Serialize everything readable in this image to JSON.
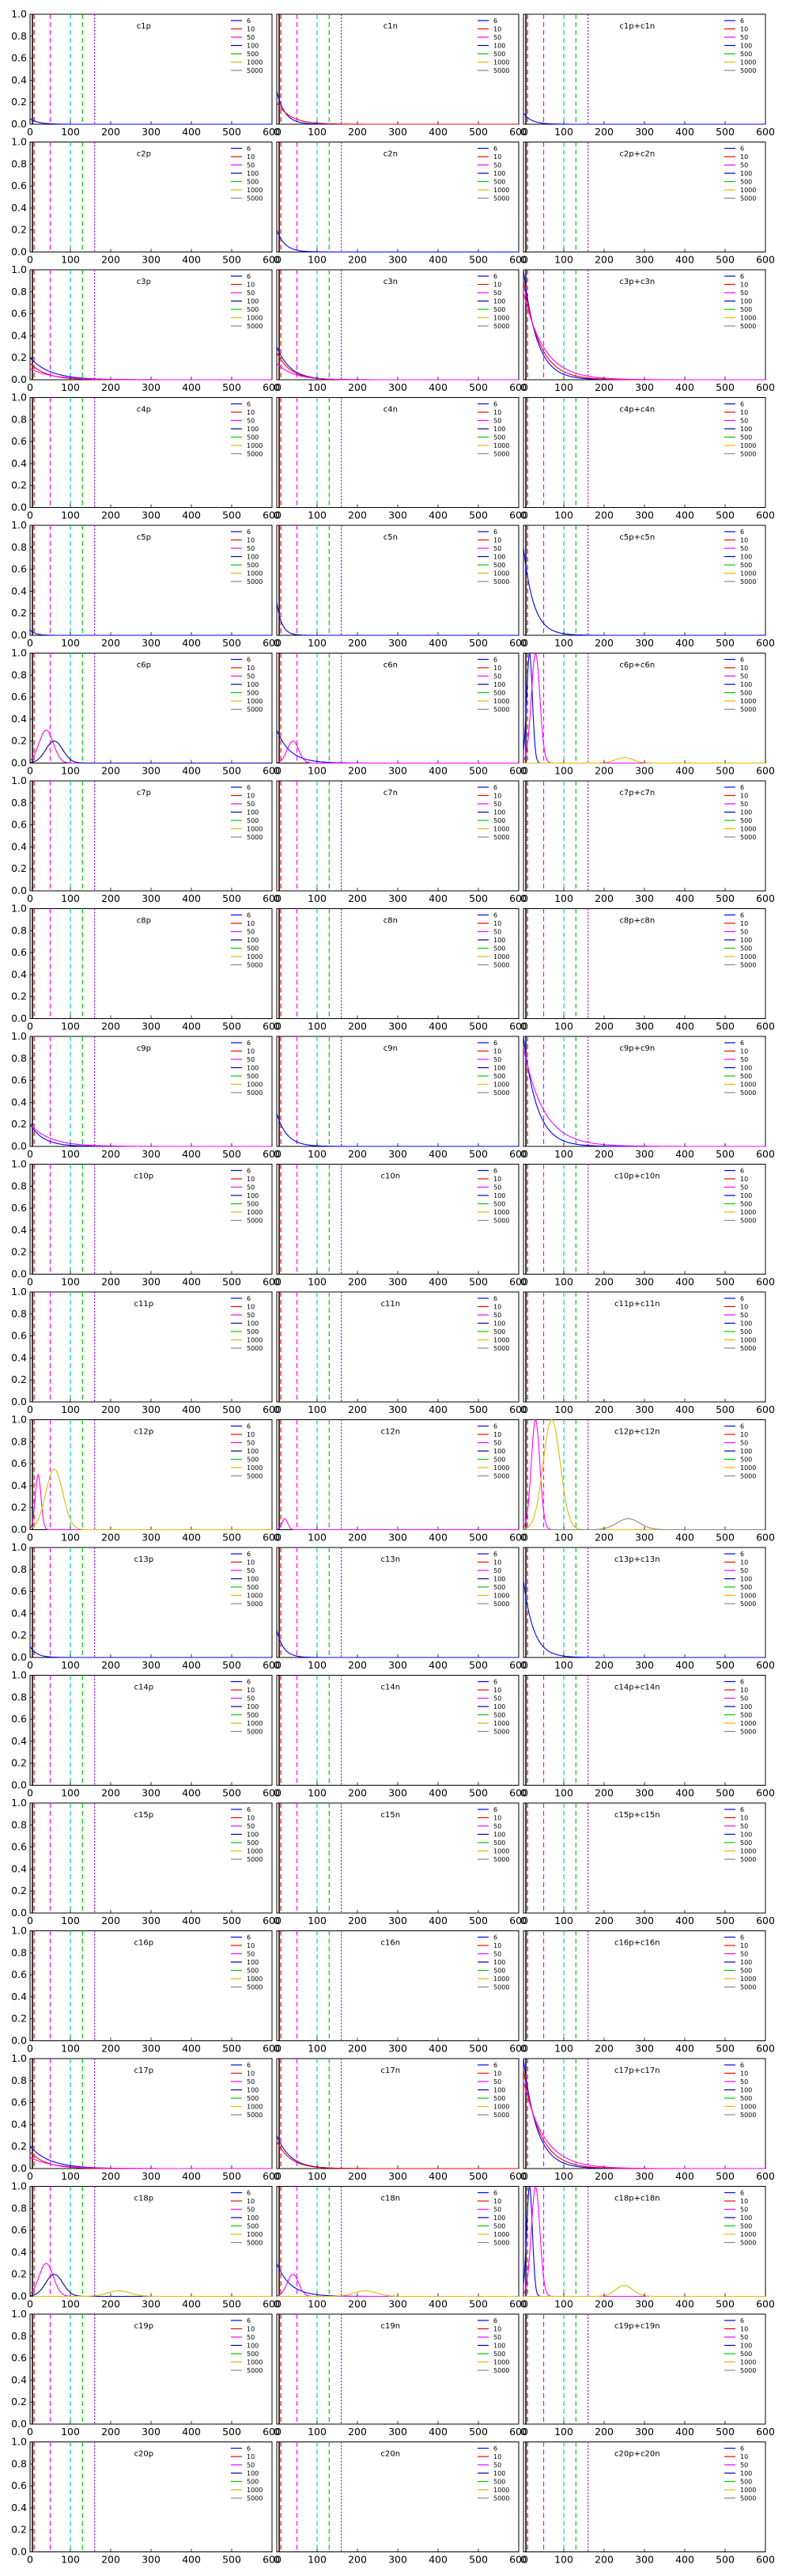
{
  "chart_data": {
    "type": "line",
    "layout": "20 rows x 3 columns of small-multiple line plots",
    "xlim": [
      0,
      600
    ],
    "ylim": [
      0,
      1.0
    ],
    "x_ticks": [
      0,
      100,
      200,
      300,
      400,
      500,
      600
    ],
    "y_ticks": [
      0.0,
      0.2,
      0.4,
      0.6,
      0.8,
      1.0
    ],
    "x_ticklabels": [
      "0",
      "100",
      "200",
      "300",
      "400",
      "500",
      "600"
    ],
    "y_ticklabels": [
      "0.0",
      "0.2",
      "0.4",
      "0.6",
      "0.8",
      "1.0"
    ],
    "grid": false,
    "legend_position": "top-right",
    "series_legend": [
      {
        "name": "6",
        "color": "#0000ff"
      },
      {
        "name": "10",
        "color": "#ff0000"
      },
      {
        "name": "50",
        "color": "#ff00ff"
      },
      {
        "name": "100",
        "color": "#0000aa"
      },
      {
        "name": "500",
        "color": "#00cc00"
      },
      {
        "name": "1000",
        "color": "#ddbb00"
      },
      {
        "name": "5000",
        "color": "#888888"
      }
    ],
    "reference_lines": [
      {
        "x": 6,
        "color": "#000000",
        "dash": "solid"
      },
      {
        "x": 10,
        "color": "#ff0000",
        "dash": "dashed"
      },
      {
        "x": 50,
        "color": "#ff00ff",
        "dash": "dashed"
      },
      {
        "x": 100,
        "color": "#00cccc",
        "dash": "dashed"
      },
      {
        "x": 130,
        "color": "#00cc00",
        "dash": "dashed"
      },
      {
        "x": 160,
        "color": "#9900ff",
        "dash": "dotted"
      }
    ],
    "panels": [
      {
        "title": "c1p",
        "col": 0,
        "row": 0,
        "series": [
          {
            "name": "6",
            "decay": 0.05,
            "amp": 0.05
          }
        ]
      },
      {
        "title": "c1n",
        "col": 1,
        "row": 0,
        "series": [
          {
            "name": "6",
            "decay": 0.05,
            "amp": 0.3
          },
          {
            "name": "10",
            "decay": 0.03,
            "amp": 0.2
          }
        ]
      },
      {
        "title": "c1p+c1n",
        "col": 2,
        "row": 0,
        "series": [
          {
            "name": "6",
            "decay": 0.05,
            "amp": 0.1
          }
        ]
      },
      {
        "title": "c2p",
        "col": 0,
        "row": 1,
        "series": []
      },
      {
        "title": "c2n",
        "col": 1,
        "row": 1,
        "series": [
          {
            "name": "6",
            "decay": 0.05,
            "amp": 0.2
          }
        ]
      },
      {
        "title": "c2p+c2n",
        "col": 2,
        "row": 1,
        "series": []
      },
      {
        "title": "c3p",
        "col": 0,
        "row": 2,
        "series": [
          {
            "name": "6",
            "decay": 0.02,
            "amp": 0.2
          },
          {
            "name": "10",
            "decay": 0.025,
            "amp": 0.15
          },
          {
            "name": "50",
            "decay": 0.018,
            "amp": 0.1
          }
        ]
      },
      {
        "title": "c3n",
        "col": 1,
        "row": 2,
        "series": [
          {
            "name": "6",
            "decay": 0.03,
            "amp": 0.3
          },
          {
            "name": "10",
            "decay": 0.03,
            "amp": 0.25
          },
          {
            "name": "50",
            "decay": 0.025,
            "amp": 0.15
          }
        ]
      },
      {
        "title": "c3p+c3n",
        "col": 2,
        "row": 2,
        "series": [
          {
            "name": "6",
            "decay": 0.03,
            "amp": 1.0
          },
          {
            "name": "10",
            "decay": 0.025,
            "amp": 0.9
          },
          {
            "name": "50",
            "decay": 0.02,
            "amp": 0.8
          }
        ]
      },
      {
        "title": "c4p",
        "col": 0,
        "row": 3,
        "series": []
      },
      {
        "title": "c4n",
        "col": 1,
        "row": 3,
        "series": []
      },
      {
        "title": "c4p+c4n",
        "col": 2,
        "row": 3,
        "series": []
      },
      {
        "title": "c5p",
        "col": 0,
        "row": 4,
        "series": [
          {
            "name": "6",
            "decay": 0.08,
            "amp": 0.05
          }
        ]
      },
      {
        "title": "c5n",
        "col": 1,
        "row": 4,
        "series": [
          {
            "name": "6",
            "decay": 0.08,
            "amp": 0.3
          }
        ]
      },
      {
        "title": "c5p+c5n",
        "col": 2,
        "row": 4,
        "series": [
          {
            "name": "6",
            "decay": 0.04,
            "amp": 0.8
          }
        ]
      },
      {
        "title": "c6p",
        "col": 0,
        "row": 5,
        "series": [
          {
            "name": "50",
            "peak": 40,
            "width": 25,
            "amp": 0.3
          },
          {
            "name": "100",
            "peak": 60,
            "width": 30,
            "amp": 0.2
          }
        ]
      },
      {
        "title": "c6n",
        "col": 1,
        "row": 5,
        "series": [
          {
            "name": "6",
            "decay": 0.03,
            "amp": 0.3
          },
          {
            "name": "50",
            "peak": 40,
            "width": 20,
            "amp": 0.2
          }
        ]
      },
      {
        "title": "c6p+c6n",
        "col": 2,
        "row": 5,
        "series": [
          {
            "name": "6",
            "peak": 15,
            "width": 10,
            "amp": 1.0
          },
          {
            "name": "50",
            "peak": 30,
            "width": 15,
            "amp": 1.0
          },
          {
            "name": "1000",
            "peak": 250,
            "width": 30,
            "amp": 0.05
          }
        ]
      },
      {
        "title": "c7p",
        "col": 0,
        "row": 6,
        "series": []
      },
      {
        "title": "c7n",
        "col": 1,
        "row": 6,
        "series": []
      },
      {
        "title": "c7p+c7n",
        "col": 2,
        "row": 6,
        "series": []
      },
      {
        "title": "c8p",
        "col": 0,
        "row": 7,
        "series": []
      },
      {
        "title": "c8n",
        "col": 1,
        "row": 7,
        "series": []
      },
      {
        "title": "c8p+c8n",
        "col": 2,
        "row": 7,
        "series": []
      },
      {
        "title": "c9p",
        "col": 0,
        "row": 8,
        "series": [
          {
            "name": "6",
            "decay": 0.03,
            "amp": 0.2
          },
          {
            "name": "50",
            "decay": 0.02,
            "amp": 0.2
          }
        ]
      },
      {
        "title": "c9n",
        "col": 1,
        "row": 8,
        "series": [
          {
            "name": "6",
            "decay": 0.04,
            "amp": 0.3
          }
        ]
      },
      {
        "title": "c9p+c9n",
        "col": 2,
        "row": 8,
        "series": [
          {
            "name": "6",
            "decay": 0.03,
            "amp": 1.0
          },
          {
            "name": "50",
            "decay": 0.02,
            "amp": 0.9
          }
        ]
      },
      {
        "title": "c10p",
        "col": 0,
        "row": 9,
        "series": []
      },
      {
        "title": "c10n",
        "col": 1,
        "row": 9,
        "series": []
      },
      {
        "title": "c10p+c10n",
        "col": 2,
        "row": 9,
        "series": []
      },
      {
        "title": "c11p",
        "col": 0,
        "row": 10,
        "series": []
      },
      {
        "title": "c11n",
        "col": 1,
        "row": 10,
        "series": []
      },
      {
        "title": "c11p+c11n",
        "col": 2,
        "row": 10,
        "series": []
      },
      {
        "title": "c12p",
        "col": 0,
        "row": 11,
        "series": [
          {
            "name": "50",
            "peak": 20,
            "width": 10,
            "amp": 0.5
          },
          {
            "name": "1000",
            "peak": 60,
            "width": 30,
            "amp": 0.55
          }
        ]
      },
      {
        "title": "c12n",
        "col": 1,
        "row": 11,
        "series": [
          {
            "name": "50",
            "peak": 20,
            "width": 10,
            "amp": 0.1
          }
        ]
      },
      {
        "title": "c12p+c12n",
        "col": 2,
        "row": 11,
        "series": [
          {
            "name": "50",
            "peak": 30,
            "width": 15,
            "amp": 1.0
          },
          {
            "name": "1000",
            "peak": 70,
            "width": 30,
            "amp": 1.0
          },
          {
            "name": "5000",
            "peak": 260,
            "width": 40,
            "amp": 0.1
          }
        ]
      },
      {
        "title": "c13p",
        "col": 0,
        "row": 12,
        "series": [
          {
            "name": "6",
            "decay": 0.06,
            "amp": 0.1
          }
        ]
      },
      {
        "title": "c13n",
        "col": 1,
        "row": 12,
        "series": [
          {
            "name": "6",
            "decay": 0.06,
            "amp": 0.25
          }
        ]
      },
      {
        "title": "c13p+c13n",
        "col": 2,
        "row": 12,
        "series": [
          {
            "name": "6",
            "decay": 0.04,
            "amp": 0.7
          }
        ]
      },
      {
        "title": "c14p",
        "col": 0,
        "row": 13,
        "series": []
      },
      {
        "title": "c14n",
        "col": 1,
        "row": 13,
        "series": []
      },
      {
        "title": "c14p+c14n",
        "col": 2,
        "row": 13,
        "series": []
      },
      {
        "title": "c15p",
        "col": 0,
        "row": 14,
        "series": []
      },
      {
        "title": "c15n",
        "col": 1,
        "row": 14,
        "series": []
      },
      {
        "title": "c15p+c15n",
        "col": 2,
        "row": 14,
        "series": []
      },
      {
        "title": "c16p",
        "col": 0,
        "row": 15,
        "series": []
      },
      {
        "title": "c16n",
        "col": 1,
        "row": 15,
        "series": []
      },
      {
        "title": "c16p+c16n",
        "col": 2,
        "row": 15,
        "series": []
      },
      {
        "title": "c17p",
        "col": 0,
        "row": 16,
        "series": [
          {
            "name": "6",
            "decay": 0.02,
            "amp": 0.2
          },
          {
            "name": "10",
            "decay": 0.025,
            "amp": 0.15
          },
          {
            "name": "50",
            "decay": 0.018,
            "amp": 0.1
          }
        ]
      },
      {
        "title": "c17n",
        "col": 1,
        "row": 16,
        "series": [
          {
            "name": "6",
            "decay": 0.03,
            "amp": 0.3
          },
          {
            "name": "10",
            "decay": 0.03,
            "amp": 0.25
          }
        ]
      },
      {
        "title": "c17p+c17n",
        "col": 2,
        "row": 16,
        "series": [
          {
            "name": "6",
            "decay": 0.03,
            "amp": 1.0
          },
          {
            "name": "10",
            "decay": 0.025,
            "amp": 0.9
          },
          {
            "name": "50",
            "decay": 0.02,
            "amp": 0.8
          }
        ]
      },
      {
        "title": "c18p",
        "col": 0,
        "row": 17,
        "series": [
          {
            "name": "50",
            "peak": 40,
            "width": 25,
            "amp": 0.3
          },
          {
            "name": "100",
            "peak": 60,
            "width": 30,
            "amp": 0.2
          },
          {
            "name": "1000",
            "peak": 220,
            "width": 40,
            "amp": 0.05
          }
        ]
      },
      {
        "title": "c18n",
        "col": 1,
        "row": 17,
        "series": [
          {
            "name": "6",
            "decay": 0.03,
            "amp": 0.3
          },
          {
            "name": "50",
            "peak": 40,
            "width": 20,
            "amp": 0.2
          },
          {
            "name": "1000",
            "peak": 220,
            "width": 40,
            "amp": 0.05
          }
        ]
      },
      {
        "title": "c18p+c18n",
        "col": 2,
        "row": 17,
        "series": [
          {
            "name": "6",
            "peak": 15,
            "width": 10,
            "amp": 1.0
          },
          {
            "name": "50",
            "peak": 30,
            "width": 15,
            "amp": 1.0
          },
          {
            "name": "1000",
            "peak": 250,
            "width": 30,
            "amp": 0.1
          }
        ]
      },
      {
        "title": "c19p",
        "col": 0,
        "row": 18,
        "series": []
      },
      {
        "title": "c19n",
        "col": 1,
        "row": 18,
        "series": []
      },
      {
        "title": "c19p+c19n",
        "col": 2,
        "row": 18,
        "series": []
      },
      {
        "title": "c20p",
        "col": 0,
        "row": 19,
        "series": []
      },
      {
        "title": "c20n",
        "col": 1,
        "row": 19,
        "series": []
      },
      {
        "title": "c20p+c20n",
        "col": 2,
        "row": 19,
        "series": []
      }
    ]
  }
}
